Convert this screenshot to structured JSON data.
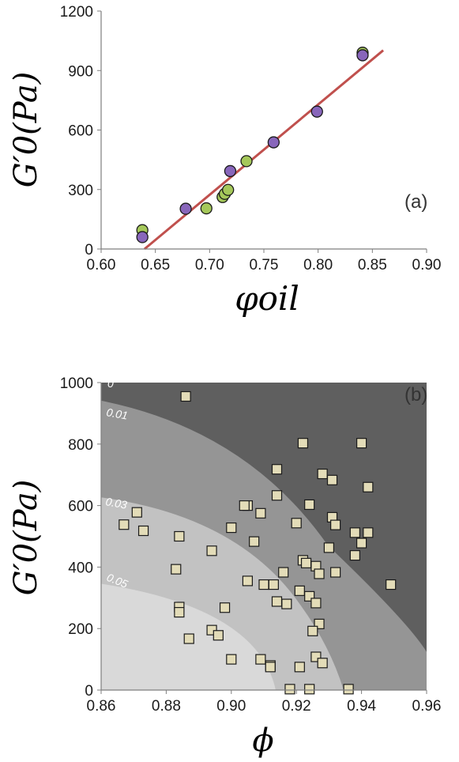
{
  "chart_data": [
    {
      "type": "scatter",
      "panel_label": "(a)",
      "ylabel": "G′0(Pa)",
      "xlabel": "φoil",
      "xlim": [
        0.6,
        0.9
      ],
      "ylim": [
        0,
        1200
      ],
      "xticks": [
        "0.60",
        "0.65",
        "0.70",
        "0.75",
        "0.80",
        "0.85",
        "0.90"
      ],
      "yticks": [
        "0",
        "300",
        "600",
        "900",
        "1200"
      ],
      "colors": {
        "series_green": "#a5c85a",
        "series_purple": "#8866bb",
        "fit_line": "#c0504d"
      },
      "series": [
        {
          "color_key": "series_green",
          "points": [
            [
              0.638,
              95
            ],
            [
              0.697,
              205
            ],
            [
              0.712,
              262
            ],
            [
              0.714,
              278
            ],
            [
              0.717,
              298
            ],
            [
              0.734,
              443
            ],
            [
              0.841,
              990
            ]
          ]
        },
        {
          "color_key": "series_purple",
          "points": [
            [
              0.638,
              60
            ],
            [
              0.678,
              203
            ],
            [
              0.719,
              393
            ],
            [
              0.759,
              538
            ],
            [
              0.799,
              693
            ],
            [
              0.841,
              977
            ]
          ]
        }
      ],
      "fit_line": [
        [
          0.64,
          0
        ],
        [
          0.86,
          1002
        ]
      ]
    },
    {
      "type": "scatter",
      "panel_label": "(b)",
      "ylabel": "G′0(Pa)",
      "xlabel": "ϕ",
      "xlim": [
        0.86,
        0.96
      ],
      "ylim": [
        0,
        1000
      ],
      "xticks": [
        "0.86",
        "0.88",
        "0.90",
        "0.92",
        "0.94",
        "0.96"
      ],
      "yticks": [
        "0",
        "200",
        "400",
        "600",
        "800",
        "1000"
      ],
      "band_labels": [
        "0",
        "0.01",
        "0.03",
        "0.05"
      ],
      "colors": {
        "band_0": "#5f5f5f",
        "band_1": "#959595",
        "band_2": "#c2c2c2",
        "band_3": "#d9d9d9",
        "marker": "#e3dcb8"
      },
      "points": [
        [
          0.886,
          955
        ],
        [
          0.922,
          803
        ],
        [
          0.94,
          803
        ],
        [
          0.914,
          718
        ],
        [
          0.928,
          703
        ],
        [
          0.931,
          683
        ],
        [
          0.942,
          660
        ],
        [
          0.914,
          633
        ],
        [
          0.924,
          603
        ],
        [
          0.905,
          600
        ],
        [
          0.904,
          600
        ],
        [
          0.909,
          575
        ],
        [
          0.871,
          578
        ],
        [
          0.931,
          562
        ],
        [
          0.92,
          543
        ],
        [
          0.867,
          538
        ],
        [
          0.932,
          537
        ],
        [
          0.9,
          528
        ],
        [
          0.873,
          518
        ],
        [
          0.938,
          512
        ],
        [
          0.942,
          512
        ],
        [
          0.884,
          500
        ],
        [
          0.907,
          483
        ],
        [
          0.94,
          478
        ],
        [
          0.93,
          463
        ],
        [
          0.894,
          453
        ],
        [
          0.938,
          438
        ],
        [
          0.922,
          422
        ],
        [
          0.923,
          413
        ],
        [
          0.926,
          403
        ],
        [
          0.916,
          383
        ],
        [
          0.932,
          383
        ],
        [
          0.927,
          378
        ],
        [
          0.883,
          393
        ],
        [
          0.905,
          355
        ],
        [
          0.91,
          343
        ],
        [
          0.949,
          343
        ],
        [
          0.913,
          343
        ],
        [
          0.921,
          323
        ],
        [
          0.924,
          305
        ],
        [
          0.914,
          288
        ],
        [
          0.917,
          280
        ],
        [
          0.926,
          283
        ],
        [
          0.884,
          270
        ],
        [
          0.898,
          268
        ],
        [
          0.884,
          253
        ],
        [
          0.927,
          215
        ],
        [
          0.925,
          192
        ],
        [
          0.894,
          195
        ],
        [
          0.896,
          178
        ],
        [
          0.887,
          167
        ],
        [
          0.9,
          100
        ],
        [
          0.909,
          100
        ],
        [
          0.912,
          80
        ],
        [
          0.912,
          75
        ],
        [
          0.921,
          75
        ],
        [
          0.926,
          108
        ],
        [
          0.928,
          88
        ],
        [
          0.918,
          3
        ],
        [
          0.924,
          3
        ],
        [
          0.936,
          3
        ]
      ]
    }
  ]
}
